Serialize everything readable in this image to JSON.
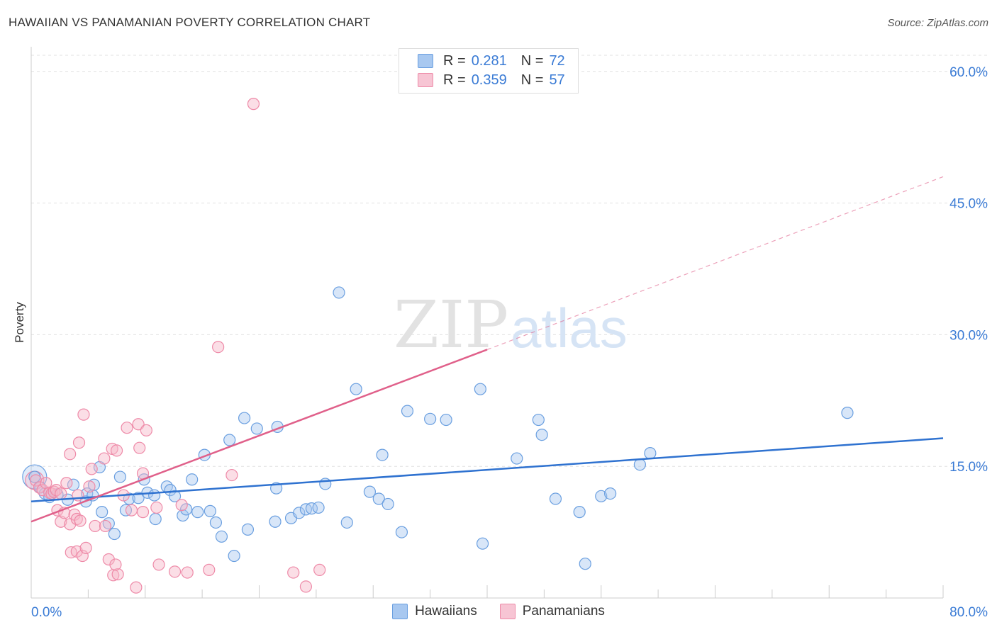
{
  "header": {
    "title": "HAWAIIAN VS PANAMANIAN POVERTY CORRELATION CHART",
    "source": "Source: ZipAtlas.com"
  },
  "watermark": {
    "zip": "ZIP",
    "atlas": "atlas"
  },
  "legend": {
    "rows": [
      {
        "r_label": "R =",
        "r_value": "0.281",
        "n_label": "N =",
        "n_value": "72"
      },
      {
        "r_label": "R =",
        "r_value": "0.359",
        "n_label": "N =",
        "n_value": "57"
      }
    ],
    "bottom": [
      "Hawaiians",
      "Panamanians"
    ]
  },
  "colors": {
    "hawaiians_fill": "#a8c8f0",
    "hawaiians_stroke": "#6a9fe0",
    "hawaiians_line": "#2f72d0",
    "panamanians_fill": "#f7b6c8",
    "panamanians_stroke": "#ee8aa8",
    "panamanians_line": "#e0608a",
    "axis_text": "#3a7bd5"
  },
  "chart_data": {
    "type": "scatter",
    "title": "HAWAIIAN VS PANAMANIAN POVERTY CORRELATION CHART",
    "xlabel": "",
    "ylabel": "Poverty",
    "xlim": [
      0,
      80
    ],
    "ylim": [
      0,
      62
    ],
    "x_tick_labels": [
      "0.0%",
      "80.0%"
    ],
    "y_ticks": [
      15,
      30,
      45,
      60
    ],
    "y_tick_labels": [
      "15.0%",
      "30.0%",
      "45.0%",
      "60.0%"
    ],
    "grid": true,
    "series": [
      {
        "name": "Hawaiians",
        "r": 0.281,
        "n": 72,
        "trend": {
          "x0": 0,
          "y0": 11.0,
          "x1": 80,
          "y1": 18.2,
          "dashed_to": null
        },
        "points": [
          [
            0.3,
            13.8
          ],
          [
            0.8,
            12.6
          ],
          [
            1.2,
            11.9
          ],
          [
            1.6,
            11.5
          ],
          [
            2.3,
            11.8
          ],
          [
            3.2,
            11.2
          ],
          [
            3.7,
            12.9
          ],
          [
            4.8,
            11.0
          ],
          [
            4.9,
            11.9
          ],
          [
            5.4,
            11.7
          ],
          [
            5.5,
            12.9
          ],
          [
            6.0,
            14.9
          ],
          [
            6.2,
            9.8
          ],
          [
            6.8,
            8.5
          ],
          [
            7.3,
            7.3
          ],
          [
            7.8,
            13.8
          ],
          [
            8.3,
            10.0
          ],
          [
            8.6,
            11.3
          ],
          [
            9.4,
            11.4
          ],
          [
            9.9,
            13.5
          ],
          [
            10.2,
            12.0
          ],
          [
            10.9,
            9.0
          ],
          [
            10.8,
            11.7
          ],
          [
            11.9,
            12.7
          ],
          [
            12.2,
            12.3
          ],
          [
            12.6,
            11.6
          ],
          [
            13.3,
            9.4
          ],
          [
            13.6,
            10.1
          ],
          [
            14.1,
            13.5
          ],
          [
            14.6,
            9.8
          ],
          [
            15.2,
            16.3
          ],
          [
            15.7,
            9.9
          ],
          [
            16.2,
            8.6
          ],
          [
            16.7,
            7.0
          ],
          [
            17.4,
            18.0
          ],
          [
            17.8,
            4.8
          ],
          [
            18.7,
            20.5
          ],
          [
            19.0,
            7.8
          ],
          [
            19.8,
            19.3
          ],
          [
            21.6,
            19.5
          ],
          [
            21.5,
            12.5
          ],
          [
            21.4,
            8.7
          ],
          [
            22.8,
            9.1
          ],
          [
            23.5,
            9.7
          ],
          [
            24.1,
            10.1
          ],
          [
            24.6,
            10.2
          ],
          [
            25.2,
            10.3
          ],
          [
            25.8,
            13.0
          ],
          [
            27.0,
            34.8
          ],
          [
            27.7,
            8.6
          ],
          [
            28.5,
            23.8
          ],
          [
            29.7,
            12.1
          ],
          [
            30.5,
            11.3
          ],
          [
            30.8,
            16.3
          ],
          [
            31.3,
            10.7
          ],
          [
            32.5,
            7.5
          ],
          [
            33.0,
            21.3
          ],
          [
            35.0,
            20.4
          ],
          [
            36.4,
            20.3
          ],
          [
            39.4,
            23.8
          ],
          [
            39.6,
            6.2
          ],
          [
            42.6,
            15.9
          ],
          [
            44.5,
            20.3
          ],
          [
            44.8,
            18.6
          ],
          [
            46.0,
            11.3
          ],
          [
            48.1,
            9.8
          ],
          [
            48.6,
            3.9
          ],
          [
            50.0,
            11.6
          ],
          [
            50.8,
            11.9
          ],
          [
            53.4,
            15.2
          ],
          [
            54.3,
            16.5
          ],
          [
            71.6,
            21.1
          ]
        ]
      },
      {
        "name": "Panamanians",
        "r": 0.359,
        "n": 57,
        "trend": {
          "x0": 0,
          "y0": 8.7,
          "x1": 40,
          "y1": 28.3,
          "dashed_to": {
            "x": 80,
            "y": 48.0
          }
        },
        "points": [
          [
            0.4,
            13.4
          ],
          [
            0.7,
            12.6
          ],
          [
            1.0,
            12.3
          ],
          [
            1.3,
            13.1
          ],
          [
            1.6,
            12.0
          ],
          [
            1.8,
            11.9
          ],
          [
            2.0,
            12.1
          ],
          [
            2.2,
            12.3
          ],
          [
            2.6,
            11.9
          ],
          [
            2.3,
            10.0
          ],
          [
            2.6,
            8.7
          ],
          [
            3.1,
            13.1
          ],
          [
            2.9,
            9.7
          ],
          [
            3.4,
            8.4
          ],
          [
            3.8,
            9.5
          ],
          [
            4.1,
            11.7
          ],
          [
            4.0,
            9.0
          ],
          [
            3.5,
            5.2
          ],
          [
            4.0,
            5.3
          ],
          [
            4.5,
            4.8
          ],
          [
            3.4,
            16.4
          ],
          [
            4.3,
            8.8
          ],
          [
            4.8,
            5.7
          ],
          [
            4.2,
            17.7
          ],
          [
            4.6,
            20.9
          ],
          [
            5.3,
            14.7
          ],
          [
            5.1,
            12.7
          ],
          [
            5.6,
            8.2
          ],
          [
            6.4,
            15.9
          ],
          [
            6.8,
            4.4
          ],
          [
            7.2,
            2.6
          ],
          [
            6.5,
            8.2
          ],
          [
            7.1,
            17.0
          ],
          [
            7.5,
            16.8
          ],
          [
            7.6,
            2.7
          ],
          [
            7.4,
            3.8
          ],
          [
            8.1,
            11.7
          ],
          [
            8.4,
            19.4
          ],
          [
            8.8,
            10.0
          ],
          [
            9.4,
            19.8
          ],
          [
            9.2,
            1.2
          ],
          [
            9.5,
            17.1
          ],
          [
            9.8,
            9.8
          ],
          [
            10.1,
            19.1
          ],
          [
            9.8,
            14.2
          ],
          [
            11.0,
            10.3
          ],
          [
            11.2,
            3.8
          ],
          [
            12.6,
            3.0
          ],
          [
            13.2,
            10.6
          ],
          [
            13.7,
            2.9
          ],
          [
            15.6,
            3.2
          ],
          [
            16.4,
            28.6
          ],
          [
            17.6,
            14.0
          ],
          [
            19.5,
            56.3
          ],
          [
            23.0,
            2.9
          ],
          [
            24.1,
            1.3
          ],
          [
            25.3,
            3.2
          ]
        ]
      }
    ]
  }
}
